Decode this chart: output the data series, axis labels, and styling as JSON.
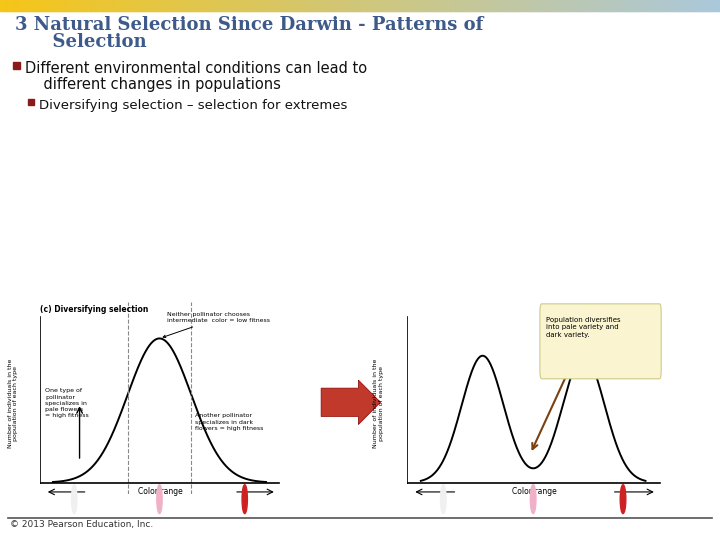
{
  "title_line1": "3 Natural Selection Since Darwin - Patterns of",
  "title_line2": "      Selection",
  "bullet1": "Different environmental conditions can lead to",
  "bullet1b": "    different changes in populations",
  "bullet2": "Diversifying selection – selection for extremes",
  "footer": "© 2013 Pearson Education, Inc.",
  "bg_color": "#ffffff",
  "header_gradient_left": "#f5c518",
  "header_gradient_right": "#aac8dc",
  "title_color": "#3d5a8a",
  "bullet1_color": "#111111",
  "bullet_square_color": "#8b1a1a",
  "footer_color": "#333333",
  "image_label": "(c) Diversifying selection",
  "ann_left1": "One type of\npollinator\nspecializes in\npale flowers\n= high fitness",
  "ann_center_top": "Neither pollinator chooses\nintermediate  color = low fitness",
  "ann_right_bottom": "Another pollinator\nspecializes in dark\nflowers = high fitness",
  "ann_right_box": "Population diversifies\ninto pale variety and\ndark variety.",
  "x_label": "Color range",
  "y_label_lines": [
    "Number of individuals in the",
    "population of each type"
  ]
}
